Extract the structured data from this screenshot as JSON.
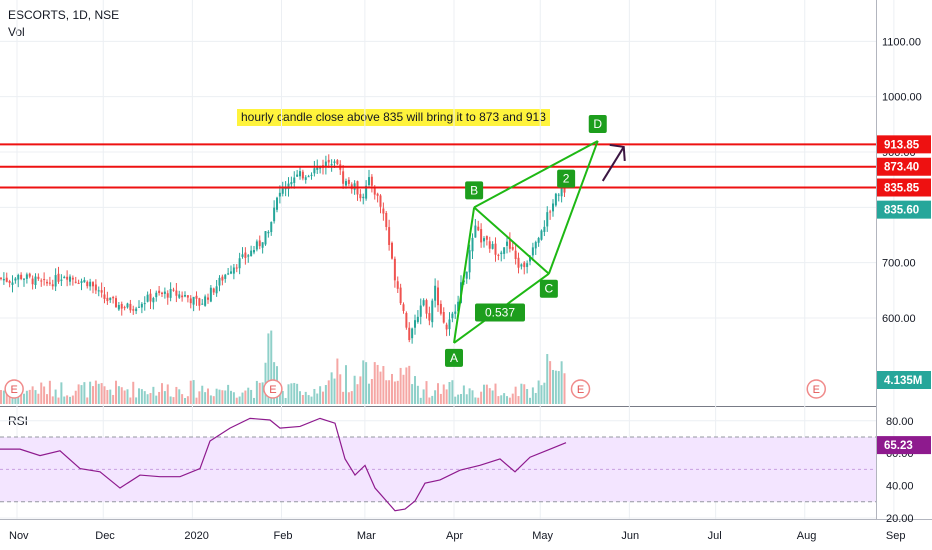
{
  "header": {
    "symbol_line": "ESCORTS, 1D, NSE",
    "volume_label": "Vol"
  },
  "rsi_panel": {
    "label": "RSI",
    "value": "65.23"
  },
  "colors": {
    "up": "#26a69a",
    "down": "#ef5350",
    "up_vol": "#8fd0c9",
    "down_vol": "#f5a6a4",
    "level": "#ee1111",
    "pattern": "#1eb814",
    "rsi_line": "#8e1a8e",
    "rsi_fill": "#f3e5ff",
    "grid": "#eceff3",
    "marker": "#f08a8a",
    "label_green": "#1d9e1d",
    "note_bg": "#fff33c"
  },
  "annotation": {
    "text": "hourly candle close above 835 will bring it to 873 and 913"
  },
  "chart_data": {
    "type": "candlestick",
    "price_axis": {
      "ticks": [
        "1100.00",
        "1000.00",
        "900.00",
        "800.00",
        "700.00",
        "600.00"
      ],
      "tick_values": [
        1100,
        1000,
        900,
        800,
        700,
        600
      ]
    },
    "rsi_axis": {
      "ticks": [
        "80.00",
        "60.00",
        "40.00",
        "20.00"
      ],
      "tick_values": [
        80,
        60,
        40,
        20
      ],
      "band": [
        30,
        70
      ]
    },
    "x_axis": {
      "labels": [
        "Nov",
        "Dec",
        "2020",
        "Feb",
        "Mar",
        "Apr",
        "May",
        "Jun",
        "Jul",
        "Aug",
        "Sep"
      ]
    },
    "levels": [
      {
        "label": "913.85",
        "value": 913.85
      },
      {
        "label": "873.40",
        "value": 873.4
      },
      {
        "label": "835.85",
        "value": 835.85
      }
    ],
    "last_price": {
      "label": "835.60",
      "value": 835.6
    },
    "volume_label": {
      "label": "4.135M"
    },
    "pattern_points": [
      {
        "name": "A",
        "date": "2020-04-01",
        "price": 555
      },
      {
        "name": "B",
        "date": "2020-04-08",
        "price": 800
      },
      {
        "name": "C",
        "date": "2020-05-04",
        "price": 680
      },
      {
        "name": "D",
        "date": "2020-05-21",
        "price": 920
      }
    ],
    "pattern_labels": [
      {
        "text": "0.537",
        "date": "2020-04-17",
        "price": 610
      },
      {
        "text": "2",
        "date": "2020-05-10",
        "price": 852
      }
    ],
    "earnings_markers": [
      {
        "label": "E",
        "date": "2019-10-31"
      },
      {
        "label": "E",
        "date": "2020-01-29"
      },
      {
        "label": "E",
        "date": "2020-05-15"
      },
      {
        "label": "E",
        "date": "2020-08-05"
      }
    ],
    "price_path": [
      [
        0,
        672
      ],
      [
        10,
        668
      ],
      [
        20,
        676
      ],
      [
        35,
        667
      ],
      [
        45,
        660
      ],
      [
        55,
        668
      ],
      [
        65,
        680
      ],
      [
        75,
        670
      ],
      [
        90,
        664
      ],
      [
        100,
        640
      ],
      [
        115,
        625
      ],
      [
        130,
        618
      ],
      [
        140,
        628
      ],
      [
        155,
        640
      ],
      [
        170,
        645
      ],
      [
        185,
        640
      ],
      [
        200,
        625
      ],
      [
        215,
        655
      ],
      [
        230,
        690
      ],
      [
        245,
        710
      ],
      [
        260,
        735
      ],
      [
        270,
        770
      ],
      [
        278,
        820
      ],
      [
        290,
        850
      ],
      [
        305,
        860
      ],
      [
        318,
        872
      ],
      [
        328,
        882
      ],
      [
        336,
        893
      ],
      [
        342,
        850
      ],
      [
        355,
        835
      ],
      [
        362,
        820
      ],
      [
        370,
        850
      ],
      [
        378,
        815
      ],
      [
        385,
        780
      ],
      [
        393,
        690
      ],
      [
        400,
        640
      ],
      [
        405,
        600
      ],
      [
        410,
        560
      ],
      [
        416,
        595
      ],
      [
        423,
        640
      ],
      [
        428,
        590
      ],
      [
        435,
        655
      ],
      [
        440,
        615
      ],
      [
        446,
        580
      ],
      [
        452,
        600
      ],
      [
        460,
        650
      ],
      [
        468,
        700
      ],
      [
        475,
        760
      ],
      [
        482,
        740
      ],
      [
        490,
        730
      ],
      [
        498,
        720
      ],
      [
        506,
        735
      ],
      [
        512,
        720
      ],
      [
        520,
        690
      ],
      [
        527,
        700
      ],
      [
        534,
        740
      ],
      [
        541,
        760
      ],
      [
        549,
        790
      ],
      [
        556,
        825
      ],
      [
        562,
        835
      ],
      [
        566,
        836
      ]
    ],
    "rsi_path": [
      [
        0,
        64
      ],
      [
        20,
        61
      ],
      [
        40,
        60
      ],
      [
        60,
        60
      ],
      [
        80,
        52
      ],
      [
        100,
        47
      ],
      [
        120,
        40
      ],
      [
        140,
        45
      ],
      [
        160,
        47
      ],
      [
        180,
        44
      ],
      [
        200,
        52
      ],
      [
        210,
        66
      ],
      [
        230,
        77
      ],
      [
        250,
        80
      ],
      [
        270,
        82
      ],
      [
        280,
        74
      ],
      [
        300,
        78
      ],
      [
        320,
        80
      ],
      [
        335,
        80
      ],
      [
        345,
        55
      ],
      [
        355,
        48
      ],
      [
        365,
        51
      ],
      [
        375,
        40
      ],
      [
        385,
        30
      ],
      [
        395,
        26
      ],
      [
        405,
        24
      ],
      [
        415,
        32
      ],
      [
        425,
        40
      ],
      [
        440,
        45
      ],
      [
        460,
        48
      ],
      [
        480,
        54
      ],
      [
        500,
        55
      ],
      [
        515,
        50
      ],
      [
        530,
        56
      ],
      [
        550,
        64
      ],
      [
        566,
        65
      ]
    ]
  }
}
